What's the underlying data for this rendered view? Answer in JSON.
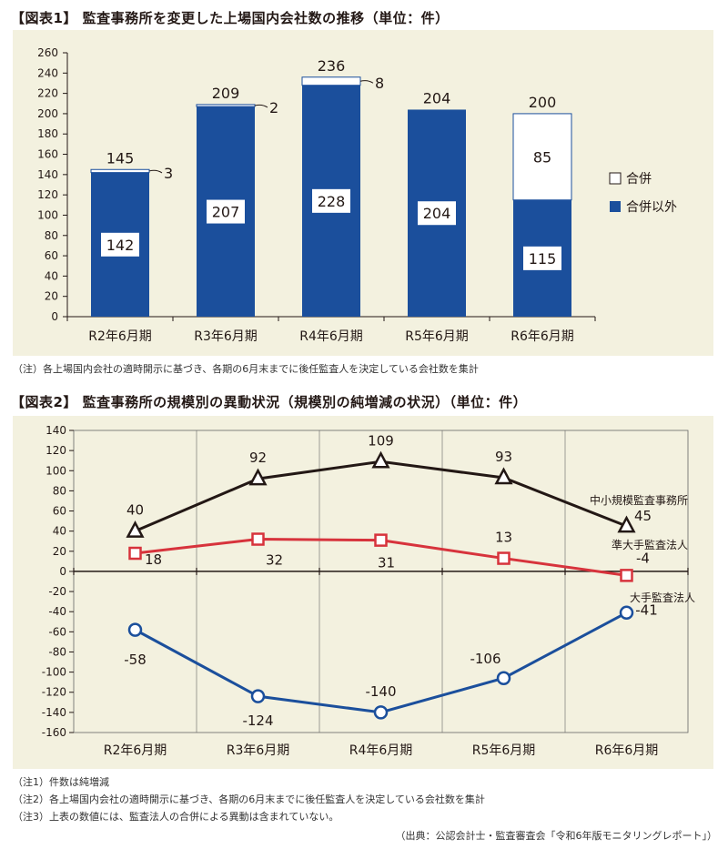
{
  "chart1_title": "【図表1】 監査事務所を変更した上場国内会社数の推移（単位：件）",
  "chart1_note": "（注）各上場国内会社の適時開示に基づき、各期の6月末までに後任監査人を決定している会社数を集計",
  "chart2_title": "【図表2】 監査事務所の規模別の異動状況（規模別の純増減の状況）（単位：件）",
  "chart2_notes": [
    "（注1）件数は純増減",
    "（注2）各上場国内会社の適時開示に基づき、各期の6月末までに後任監査人を決定している会社数を集計",
    "（注3）上表の数値には、監査法人の合併による異動は含まれていない。"
  ],
  "source": "（出典：公認会計士・監査審査会「令和6年版モニタリングレポート」）",
  "colors": {
    "bar": "#1b4f9c",
    "black": "#231815",
    "red": "#d7333c",
    "blue": "#1b4f9c",
    "panel": "#f3f1df"
  },
  "chart_data": [
    {
      "type": "bar",
      "stacked": true,
      "categories": [
        "R2年6月期",
        "R3年6月期",
        "R4年6月期",
        "R5年6月期",
        "R6年6月期"
      ],
      "series": [
        {
          "name": "合併以外",
          "values": [
            142,
            207,
            228,
            204,
            115
          ]
        },
        {
          "name": "合併",
          "values": [
            3,
            2,
            8,
            0,
            85
          ]
        }
      ],
      "totals": [
        145,
        209,
        236,
        204,
        200
      ],
      "ylim": [
        0,
        260
      ],
      "yticks": [
        0,
        20,
        40,
        60,
        80,
        100,
        120,
        140,
        160,
        180,
        200,
        220,
        240,
        260
      ],
      "legend": "right"
    },
    {
      "type": "line",
      "categories": [
        "R2年6月期",
        "R3年6月期",
        "R4年6月期",
        "R5年6月期",
        "R6年6月期"
      ],
      "series": [
        {
          "name": "中小規模監査事務所",
          "values": [
            40,
            92,
            109,
            93,
            45
          ]
        },
        {
          "name": "準大手監査法人",
          "values": [
            18,
            32,
            31,
            13,
            -4
          ]
        },
        {
          "name": "大手監査法人",
          "values": [
            -58,
            -124,
            -140,
            -106,
            -41
          ]
        }
      ],
      "ylim": [
        -160,
        140
      ],
      "yticks": [
        140,
        120,
        100,
        80,
        60,
        40,
        20,
        0,
        -20,
        -40,
        -60,
        -80,
        -100,
        -120,
        -140,
        -160
      ],
      "grid": "vertical"
    }
  ]
}
